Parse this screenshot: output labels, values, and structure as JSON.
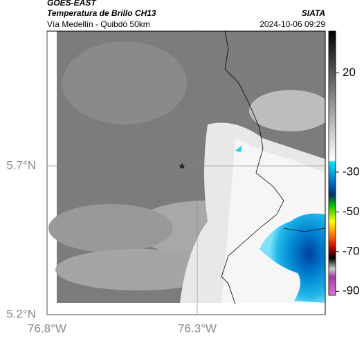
{
  "header": {
    "title": "GOES-EAST",
    "subtitle": "Temperatura de Brillo CH13",
    "location": "Vía Medellín - Quibdó 50km",
    "source": "SIATA",
    "datetime": "2024-10-06 09:29"
  },
  "map": {
    "lon_lim": [
      -76.8,
      -75.874
    ],
    "lat_lim": [
      5.2,
      6.153
    ],
    "lon_ticks": [
      {
        "value": -76.8,
        "label": "76.8°W"
      },
      {
        "value": -76.3,
        "label": "76.3°W"
      }
    ],
    "lat_ticks": [
      {
        "value": 5.7,
        "label": "5.7°N"
      },
      {
        "value": 5.2,
        "label": "5.2°N"
      }
    ]
  },
  "colorbar": {
    "lim": [
      41,
      -92
    ],
    "ticks": [
      20,
      -30,
      -50,
      -70,
      -90
    ]
  }
}
